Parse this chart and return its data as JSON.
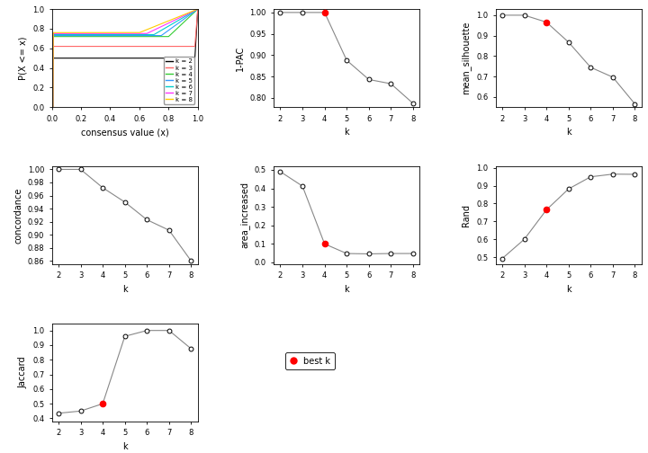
{
  "k_values": [
    2,
    3,
    4,
    5,
    6,
    7,
    8
  ],
  "one_pac": [
    1.0,
    1.0,
    1.0,
    0.888,
    0.843,
    0.833,
    0.787
  ],
  "best_k_one_pac": 4,
  "mean_silhouette": [
    1.0,
    1.0,
    0.966,
    0.868,
    0.745,
    0.697,
    0.566
  ],
  "best_k_silhouette": 4,
  "concordance": [
    1.0,
    1.0,
    0.972,
    0.95,
    0.923,
    0.907,
    0.86
  ],
  "best_k_concordance": null,
  "area_increased": [
    0.49,
    0.412,
    0.1,
    0.048,
    0.046,
    0.048,
    0.048
  ],
  "best_k_area": 4,
  "rand": [
    0.492,
    0.6,
    0.765,
    0.882,
    0.95,
    0.965,
    0.964
  ],
  "best_k_rand": 4,
  "jaccard": [
    0.435,
    0.45,
    0.5,
    0.96,
    1.0,
    1.0,
    0.875
  ],
  "best_k_jaccard": 4,
  "cdf_colors": [
    "black",
    "#FF6666",
    "#33CC33",
    "#3399FF",
    "#00CCCC",
    "#FF33FF",
    "#FFCC00"
  ],
  "cdf_labels": [
    "k = 2",
    "k = 3",
    "k = 4",
    "k = 5",
    "k = 6",
    "k = 7",
    "k = 8"
  ],
  "xlabel_k": "k",
  "ylabel_pac": "1-PAC",
  "ylabel_sil": "mean_silhouette",
  "ylabel_conc": "concordance",
  "ylabel_area": "area_increased",
  "ylabel_rand": "Rand",
  "ylabel_jacc": "Jaccard",
  "xlabel_cdf": "consensus value (x)",
  "ylabel_cdf": "P(X <= x)",
  "legend_label": "best k",
  "one_pac_yticks": [
    0.8,
    0.85,
    0.9,
    0.95,
    1.0
  ],
  "sil_yticks": [
    0.6,
    0.7,
    0.8,
    0.9,
    1.0
  ],
  "conc_yticks": [
    0.86,
    0.88,
    0.9,
    0.92,
    0.94,
    0.96,
    0.98,
    1.0
  ],
  "area_yticks": [
    0.0,
    0.1,
    0.2,
    0.3,
    0.4,
    0.5
  ],
  "rand_yticks": [
    0.5,
    0.6,
    0.7,
    0.8,
    0.9,
    1.0
  ],
  "jacc_yticks": [
    0.4,
    0.5,
    0.6,
    0.7,
    0.8,
    0.9,
    1.0
  ]
}
